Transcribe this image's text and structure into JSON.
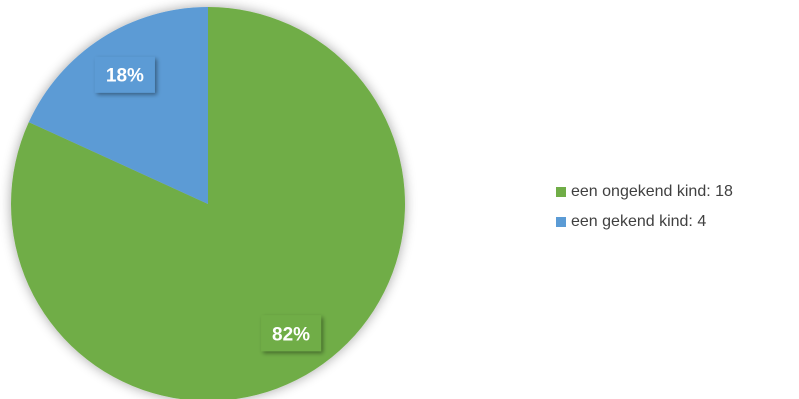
{
  "chart_data": {
    "type": "pie",
    "categories": [
      "een ongekend kind",
      "een gekend kind"
    ],
    "values": [
      18,
      4
    ],
    "data_labels": [
      "82%",
      "18%"
    ],
    "legend_labels": [
      "een ongekend kind: 18",
      "een gekend kind: 4"
    ],
    "colors": [
      "#70AD47",
      "#5B9BD5"
    ],
    "start_angle_deg": 0,
    "legend_position": "right"
  }
}
